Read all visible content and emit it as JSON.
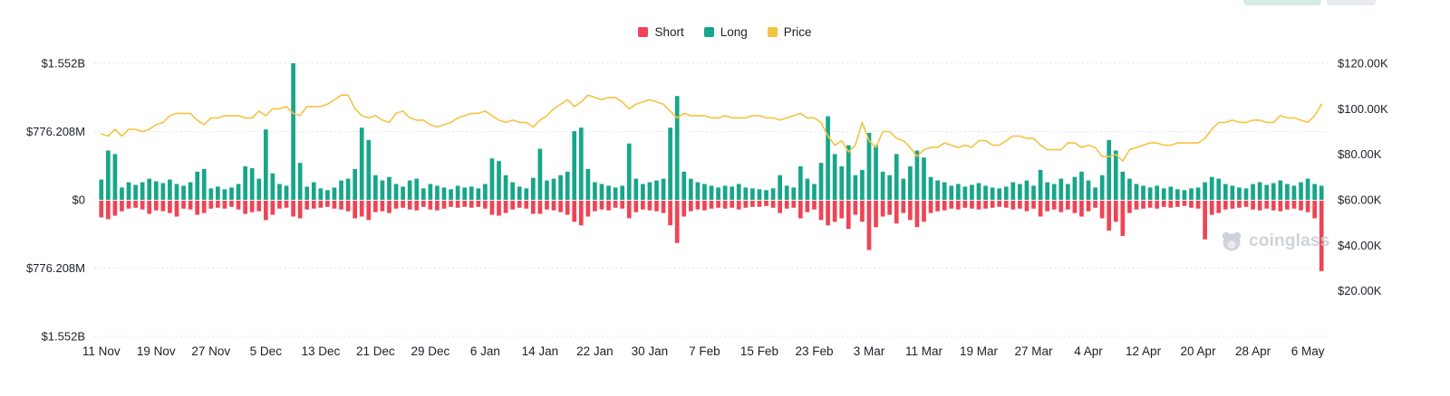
{
  "legend": {
    "items": [
      {
        "label": "Short",
        "color": "#ef4455"
      },
      {
        "label": "Long",
        "color": "#18a689"
      },
      {
        "label": "Price",
        "color": "#f5c242"
      }
    ]
  },
  "watermark": {
    "text": "coinglass"
  },
  "chart_data": {
    "type": "bar",
    "subtype": "bidirectional-bars-with-line-overlay",
    "left_axis": {
      "ticks": [
        "$1.552B",
        "$776.208M",
        "$0",
        "$776.208M",
        "$1.552B"
      ],
      "range_millions": [
        -1552,
        1552
      ],
      "grid": true
    },
    "right_axis": {
      "ticks": [
        "$120.00K",
        "$100.00K",
        "$80.00K",
        "$60.00K",
        "$40.00K",
        "$20.00K"
      ],
      "tick_values_thousands": [
        120,
        100,
        80,
        60,
        40,
        20
      ],
      "range_thousands": [
        0,
        120
      ],
      "grid": false
    },
    "x_ticks": {
      "labels": [
        "11 Nov",
        "19 Nov",
        "27 Nov",
        "5 Dec",
        "13 Dec",
        "21 Dec",
        "29 Dec",
        "6 Jan",
        "14 Jan",
        "22 Jan",
        "30 Jan",
        "7 Feb",
        "15 Feb",
        "23 Feb",
        "3 Mar",
        "11 Mar",
        "19 Mar",
        "27 Mar",
        "4 Apr",
        "12 Apr",
        "20 Apr",
        "28 Apr",
        "6 May"
      ],
      "label_every_n_bars": 8
    },
    "num_points": 179,
    "series": [
      {
        "name": "Long",
        "type": "bar",
        "color": "#18a689",
        "unit": "USD millions",
        "values": [
          230,
          560,
          520,
          140,
          200,
          170,
          200,
          240,
          210,
          190,
          230,
          180,
          160,
          200,
          320,
          350,
          130,
          150,
          120,
          140,
          180,
          380,
          360,
          240,
          800,
          300,
          180,
          160,
          1552,
          420,
          150,
          200,
          130,
          110,
          140,
          220,
          240,
          350,
          820,
          680,
          280,
          220,
          260,
          180,
          150,
          220,
          240,
          130,
          180,
          160,
          140,
          120,
          160,
          140,
          150,
          130,
          180,
          470,
          440,
          280,
          200,
          150,
          130,
          250,
          580,
          220,
          240,
          280,
          320,
          780,
          820,
          350,
          200,
          180,
          160,
          140,
          160,
          640,
          240,
          180,
          200,
          220,
          240,
          820,
          1180,
          320,
          240,
          200,
          180,
          160,
          140,
          160,
          150,
          180,
          140,
          130,
          120,
          110,
          130,
          280,
          160,
          140,
          380,
          240,
          180,
          420,
          950,
          520,
          380,
          620,
          280,
          340,
          760,
          620,
          320,
          280,
          520,
          240,
          380,
          560,
          480,
          260,
          220,
          200,
          160,
          180,
          150,
          170,
          190,
          160,
          140,
          130,
          150,
          200,
          180,
          220,
          160,
          340,
          200,
          180,
          240,
          180,
          260,
          320,
          220,
          140,
          280,
          680,
          560,
          320,
          240,
          180,
          160,
          140,
          160,
          130,
          150,
          120,
          110,
          130,
          140,
          200,
          260,
          240,
          180,
          160,
          140,
          130,
          180,
          200,
          170,
          190,
          220,
          180,
          160,
          200,
          240,
          180,
          160
        ]
      },
      {
        "name": "Short",
        "type": "bar",
        "color": "#ef4455",
        "unit": "USD millions",
        "values": [
          -190,
          -210,
          -170,
          -120,
          -90,
          -80,
          -100,
          -150,
          -110,
          -120,
          -140,
          -180,
          -90,
          -100,
          -160,
          -140,
          -90,
          -80,
          -90,
          -70,
          -100,
          -150,
          -130,
          -120,
          -220,
          -160,
          -90,
          -80,
          -180,
          -200,
          -100,
          -90,
          -80,
          -70,
          -90,
          -100,
          -120,
          -200,
          -180,
          -220,
          -130,
          -120,
          -140,
          -90,
          -80,
          -100,
          -110,
          -70,
          -100,
          -110,
          -90,
          -70,
          -80,
          -70,
          -80,
          -70,
          -90,
          -160,
          -170,
          -140,
          -100,
          -80,
          -90,
          -150,
          -150,
          -100,
          -110,
          -130,
          -160,
          -240,
          -280,
          -180,
          -120,
          -100,
          -110,
          -80,
          -90,
          -200,
          -130,
          -100,
          -110,
          -120,
          -140,
          -280,
          -480,
          -180,
          -120,
          -100,
          -110,
          -90,
          -80,
          -90,
          -80,
          -100,
          -80,
          -70,
          -70,
          -60,
          -80,
          -140,
          -90,
          -80,
          -200,
          -130,
          -100,
          -220,
          -280,
          -240,
          -200,
          -320,
          -160,
          -240,
          -560,
          -300,
          -180,
          -160,
          -260,
          -140,
          -220,
          -300,
          -240,
          -140,
          -120,
          -110,
          -90,
          -100,
          -80,
          -90,
          -100,
          -90,
          -80,
          -70,
          -80,
          -100,
          -90,
          -120,
          -90,
          -180,
          -120,
          -100,
          -130,
          -100,
          -140,
          -180,
          -120,
          -80,
          -200,
          -340,
          -240,
          -400,
          -140,
          -100,
          -90,
          -80,
          -90,
          -70,
          -80,
          -70,
          -60,
          -80,
          -90,
          -440,
          -160,
          -140,
          -100,
          -90,
          -80,
          -70,
          -100,
          -110,
          -90,
          -110,
          -120,
          -100,
          -90,
          -110,
          -130,
          -200,
          -800
        ]
      },
      {
        "name": "Price",
        "type": "line",
        "color": "#f5c242",
        "unit": "USD thousands",
        "values": [
          89,
          88,
          91,
          88,
          91,
          91,
          90,
          91,
          93,
          94,
          97,
          98,
          98,
          98,
          95,
          93,
          96,
          96,
          97,
          97,
          97,
          96,
          96,
          99,
          97,
          100,
          100,
          101,
          98,
          97,
          101,
          101,
          101,
          102,
          104,
          106,
          106,
          100,
          97,
          96,
          97,
          95,
          94,
          98,
          99,
          96,
          95,
          95,
          93,
          92,
          93,
          94,
          96,
          97,
          98,
          98,
          99,
          97,
          95,
          94,
          95,
          94,
          94,
          92,
          95,
          97,
          100,
          102,
          104,
          101,
          103,
          106,
          105,
          104,
          105,
          105,
          103,
          100,
          102,
          103,
          104,
          103,
          102,
          99,
          96,
          98,
          97,
          97,
          97,
          96,
          96,
          97,
          96,
          96,
          96,
          97,
          97,
          96,
          96,
          95,
          96,
          97,
          98,
          96,
          96,
          94,
          88,
          84,
          86,
          81,
          84,
          94,
          86,
          83,
          90,
          90,
          87,
          86,
          83,
          79,
          82,
          83,
          83,
          85,
          84,
          83,
          84,
          83,
          86,
          86,
          84,
          84,
          86,
          88,
          88,
          87,
          87,
          84,
          82,
          82,
          82,
          85,
          85,
          83,
          84,
          83,
          79,
          79,
          80,
          77,
          82,
          83,
          84,
          85,
          85,
          84,
          84,
          85,
          85,
          85,
          85,
          87,
          91,
          94,
          94,
          95,
          94,
          94,
          95,
          95,
          94,
          94,
          97,
          96,
          96,
          95,
          94,
          97,
          102
        ]
      }
    ]
  }
}
